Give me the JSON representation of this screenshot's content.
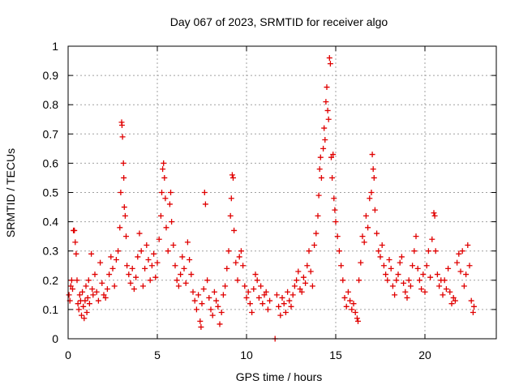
{
  "chart_data": {
    "type": "scatter",
    "title": "Day 067 of 2023, SRMTID for receiver algo",
    "xlabel": "GPS time / hours",
    "ylabel": "SRMTID / TECUs",
    "xlim": [
      0,
      24
    ],
    "ylim": [
      0,
      1
    ],
    "xticks": [
      0,
      5,
      10,
      15,
      20
    ],
    "xtick_labels": [
      "0",
      "5",
      "10",
      "15",
      "20"
    ],
    "yticks": [
      0,
      0.1,
      0.2,
      0.3,
      0.4,
      0.5,
      0.6,
      0.7,
      0.8,
      0.9,
      1
    ],
    "ytick_labels": [
      "0",
      "0.1",
      "0.2",
      "0.3",
      "0.4",
      "0.5",
      "0.6",
      "0.7",
      "0.8",
      "0.9",
      "1"
    ],
    "grid": true,
    "marker": "+",
    "colors": {
      "series": "#e00000",
      "grid": "#a0a0a0",
      "axis": "#000000"
    },
    "series": [
      {
        "name": "SRMTID",
        "points": [
          [
            0.05,
            0.15
          ],
          [
            0.1,
            0.13
          ],
          [
            0.15,
            0.18
          ],
          [
            0.2,
            0.2
          ],
          [
            0.25,
            0.17
          ],
          [
            0.3,
            0.37
          ],
          [
            0.35,
            0.37
          ],
          [
            0.4,
            0.33
          ],
          [
            0.45,
            0.29
          ],
          [
            0.5,
            0.2
          ],
          [
            0.55,
            0.12
          ],
          [
            0.6,
            0.1
          ],
          [
            0.65,
            0.15
          ],
          [
            0.7,
            0.13
          ],
          [
            0.75,
            0.08
          ],
          [
            0.8,
            0.16
          ],
          [
            0.85,
            0.11
          ],
          [
            0.9,
            0.07
          ],
          [
            0.95,
            0.13
          ],
          [
            1.0,
            0.18
          ],
          [
            1.05,
            0.09
          ],
          [
            1.1,
            0.14
          ],
          [
            1.15,
            0.2
          ],
          [
            1.2,
            0.12
          ],
          [
            1.3,
            0.29
          ],
          [
            1.35,
            0.17
          ],
          [
            1.4,
            0.15
          ],
          [
            1.5,
            0.22
          ],
          [
            1.6,
            0.16
          ],
          [
            1.7,
            0.13
          ],
          [
            1.8,
            0.26
          ],
          [
            1.9,
            0.19
          ],
          [
            2.0,
            0.15
          ],
          [
            2.1,
            0.14
          ],
          [
            2.2,
            0.17
          ],
          [
            2.3,
            0.22
          ],
          [
            2.4,
            0.28
          ],
          [
            2.5,
            0.24
          ],
          [
            2.6,
            0.18
          ],
          [
            2.7,
            0.27
          ],
          [
            2.8,
            0.3
          ],
          [
            2.9,
            0.38
          ],
          [
            2.95,
            0.5
          ],
          [
            3.0,
            0.74
          ],
          [
            3.02,
            0.73
          ],
          [
            3.05,
            0.69
          ],
          [
            3.1,
            0.6
          ],
          [
            3.12,
            0.55
          ],
          [
            3.15,
            0.45
          ],
          [
            3.2,
            0.42
          ],
          [
            3.25,
            0.35
          ],
          [
            3.3,
            0.25
          ],
          [
            3.4,
            0.22
          ],
          [
            3.5,
            0.19
          ],
          [
            3.6,
            0.24
          ],
          [
            3.7,
            0.17
          ],
          [
            3.8,
            0.21
          ],
          [
            3.9,
            0.28
          ],
          [
            4.0,
            0.36
          ],
          [
            4.1,
            0.3
          ],
          [
            4.2,
            0.18
          ],
          [
            4.3,
            0.24
          ],
          [
            4.4,
            0.32
          ],
          [
            4.5,
            0.27
          ],
          [
            4.6,
            0.2
          ],
          [
            4.7,
            0.25
          ],
          [
            4.8,
            0.29
          ],
          [
            4.9,
            0.21
          ],
          [
            5.0,
            0.26
          ],
          [
            5.1,
            0.34
          ],
          [
            5.2,
            0.42
          ],
          [
            5.25,
            0.5
          ],
          [
            5.3,
            0.58
          ],
          [
            5.35,
            0.6
          ],
          [
            5.4,
            0.55
          ],
          [
            5.45,
            0.48
          ],
          [
            5.5,
            0.38
          ],
          [
            5.6,
            0.3
          ],
          [
            5.7,
            0.46
          ],
          [
            5.75,
            0.5
          ],
          [
            5.8,
            0.4
          ],
          [
            5.9,
            0.32
          ],
          [
            6.0,
            0.25
          ],
          [
            6.1,
            0.2
          ],
          [
            6.2,
            0.18
          ],
          [
            6.3,
            0.22
          ],
          [
            6.4,
            0.28
          ],
          [
            6.5,
            0.24
          ],
          [
            6.6,
            0.19
          ],
          [
            6.7,
            0.33
          ],
          [
            6.8,
            0.27
          ],
          [
            6.9,
            0.22
          ],
          [
            7.0,
            0.16
          ],
          [
            7.1,
            0.13
          ],
          [
            7.2,
            0.1
          ],
          [
            7.3,
            0.15
          ],
          [
            7.4,
            0.06
          ],
          [
            7.45,
            0.04
          ],
          [
            7.5,
            0.12
          ],
          [
            7.6,
            0.17
          ],
          [
            7.65,
            0.5
          ],
          [
            7.7,
            0.46
          ],
          [
            7.8,
            0.2
          ],
          [
            7.9,
            0.14
          ],
          [
            8.0,
            0.1
          ],
          [
            8.1,
            0.08
          ],
          [
            8.2,
            0.16
          ],
          [
            8.3,
            0.13
          ],
          [
            8.4,
            0.11
          ],
          [
            8.5,
            0.05
          ],
          [
            8.6,
            0.09
          ],
          [
            8.7,
            0.15
          ],
          [
            8.8,
            0.18
          ],
          [
            8.9,
            0.24
          ],
          [
            9.0,
            0.3
          ],
          [
            9.1,
            0.42
          ],
          [
            9.15,
            0.48
          ],
          [
            9.2,
            0.56
          ],
          [
            9.25,
            0.55
          ],
          [
            9.3,
            0.37
          ],
          [
            9.4,
            0.26
          ],
          [
            9.5,
            0.2
          ],
          [
            9.6,
            0.28
          ],
          [
            9.7,
            0.3
          ],
          [
            9.8,
            0.25
          ],
          [
            9.9,
            0.18
          ],
          [
            10.0,
            0.14
          ],
          [
            10.1,
            0.16
          ],
          [
            10.2,
            0.12
          ],
          [
            10.3,
            0.09
          ],
          [
            10.4,
            0.17
          ],
          [
            10.5,
            0.22
          ],
          [
            10.6,
            0.2
          ],
          [
            10.7,
            0.14
          ],
          [
            10.8,
            0.18
          ],
          [
            10.9,
            0.12
          ],
          [
            11.0,
            0.15
          ],
          [
            11.1,
            0.16
          ],
          [
            11.2,
            0.1
          ],
          [
            11.3,
            0.13
          ],
          [
            11.6,
            0.0
          ],
          [
            11.7,
            0.15
          ],
          [
            11.8,
            0.11
          ],
          [
            11.9,
            0.08
          ],
          [
            12.0,
            0.14
          ],
          [
            12.1,
            0.12
          ],
          [
            12.2,
            0.09
          ],
          [
            12.3,
            0.16
          ],
          [
            12.4,
            0.13
          ],
          [
            12.5,
            0.11
          ],
          [
            12.6,
            0.15
          ],
          [
            12.7,
            0.18
          ],
          [
            12.8,
            0.2
          ],
          [
            12.9,
            0.23
          ],
          [
            13.0,
            0.17
          ],
          [
            13.1,
            0.16
          ],
          [
            13.2,
            0.21
          ],
          [
            13.3,
            0.19
          ],
          [
            13.4,
            0.25
          ],
          [
            13.5,
            0.3
          ],
          [
            13.6,
            0.23
          ],
          [
            13.7,
            0.18
          ],
          [
            13.8,
            0.32
          ],
          [
            13.9,
            0.36
          ],
          [
            14.0,
            0.42
          ],
          [
            14.05,
            0.49
          ],
          [
            14.1,
            0.58
          ],
          [
            14.15,
            0.62
          ],
          [
            14.2,
            0.55
          ],
          [
            14.3,
            0.65
          ],
          [
            14.35,
            0.72
          ],
          [
            14.4,
            0.68
          ],
          [
            14.45,
            0.81
          ],
          [
            14.5,
            0.86
          ],
          [
            14.55,
            0.78
          ],
          [
            14.6,
            0.75
          ],
          [
            14.65,
            0.96
          ],
          [
            14.7,
            0.94
          ],
          [
            14.75,
            0.62
          ],
          [
            14.8,
            0.55
          ],
          [
            14.85,
            0.63
          ],
          [
            14.9,
            0.48
          ],
          [
            14.95,
            0.44
          ],
          [
            15.0,
            0.4
          ],
          [
            15.1,
            0.35
          ],
          [
            15.2,
            0.3
          ],
          [
            15.3,
            0.25
          ],
          [
            15.4,
            0.2
          ],
          [
            15.5,
            0.14
          ],
          [
            15.6,
            0.11
          ],
          [
            15.7,
            0.16
          ],
          [
            15.8,
            0.13
          ],
          [
            15.9,
            0.1
          ],
          [
            16.0,
            0.12
          ],
          [
            16.1,
            0.09
          ],
          [
            16.2,
            0.07
          ],
          [
            16.25,
            0.06
          ],
          [
            16.3,
            0.2
          ],
          [
            16.4,
            0.26
          ],
          [
            16.5,
            0.35
          ],
          [
            16.6,
            0.33
          ],
          [
            16.7,
            0.42
          ],
          [
            16.8,
            0.38
          ],
          [
            16.9,
            0.48
          ],
          [
            17.0,
            0.5
          ],
          [
            17.05,
            0.63
          ],
          [
            17.1,
            0.58
          ],
          [
            17.15,
            0.55
          ],
          [
            17.2,
            0.44
          ],
          [
            17.3,
            0.36
          ],
          [
            17.4,
            0.3
          ],
          [
            17.5,
            0.28
          ],
          [
            17.6,
            0.32
          ],
          [
            17.7,
            0.25
          ],
          [
            17.8,
            0.22
          ],
          [
            17.9,
            0.2
          ],
          [
            18.0,
            0.27
          ],
          [
            18.1,
            0.24
          ],
          [
            18.2,
            0.18
          ],
          [
            18.3,
            0.15
          ],
          [
            18.4,
            0.2
          ],
          [
            18.5,
            0.22
          ],
          [
            18.6,
            0.26
          ],
          [
            18.7,
            0.28
          ],
          [
            18.8,
            0.19
          ],
          [
            18.9,
            0.16
          ],
          [
            19.0,
            0.14
          ],
          [
            19.1,
            0.2
          ],
          [
            19.2,
            0.18
          ],
          [
            19.3,
            0.25
          ],
          [
            19.4,
            0.3
          ],
          [
            19.5,
            0.35
          ],
          [
            19.6,
            0.24
          ],
          [
            19.7,
            0.2
          ],
          [
            19.8,
            0.17
          ],
          [
            19.9,
            0.22
          ],
          [
            20.0,
            0.16
          ],
          [
            20.1,
            0.25
          ],
          [
            20.2,
            0.3
          ],
          [
            20.3,
            0.21
          ],
          [
            20.4,
            0.34
          ],
          [
            20.5,
            0.43
          ],
          [
            20.55,
            0.42
          ],
          [
            20.6,
            0.3
          ],
          [
            20.7,
            0.22
          ],
          [
            20.8,
            0.18
          ],
          [
            20.9,
            0.2
          ],
          [
            21.0,
            0.15
          ],
          [
            21.1,
            0.2
          ],
          [
            21.2,
            0.17
          ],
          [
            21.3,
            0.24
          ],
          [
            21.4,
            0.16
          ],
          [
            21.5,
            0.12
          ],
          [
            21.6,
            0.14
          ],
          [
            21.7,
            0.13
          ],
          [
            21.8,
            0.26
          ],
          [
            21.9,
            0.29
          ],
          [
            22.0,
            0.23
          ],
          [
            22.1,
            0.3
          ],
          [
            22.2,
            0.18
          ],
          [
            22.3,
            0.22
          ],
          [
            22.4,
            0.32
          ],
          [
            22.5,
            0.25
          ],
          [
            22.6,
            0.13
          ],
          [
            22.7,
            0.09
          ],
          [
            22.75,
            0.11
          ]
        ]
      }
    ]
  }
}
